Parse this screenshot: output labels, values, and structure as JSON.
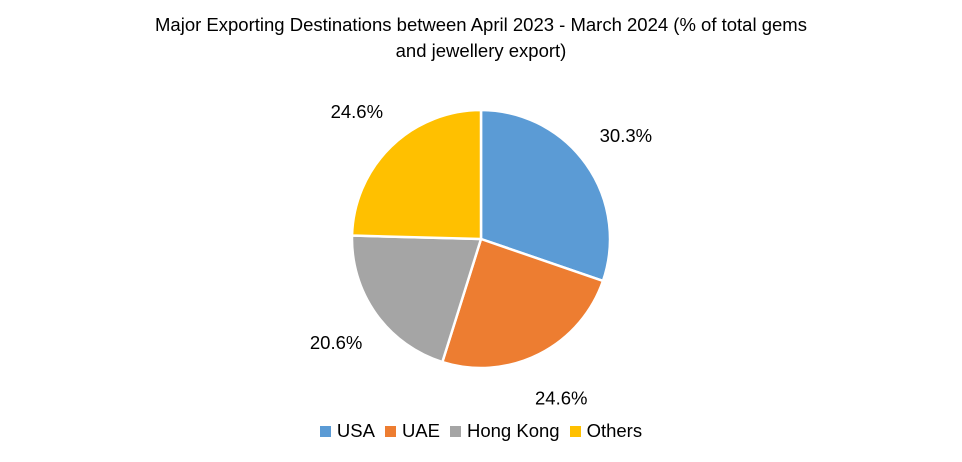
{
  "chart_data": {
    "type": "pie",
    "title": "Major Exporting Destinations between April 2023 - March 2024 (% of total gems and jewellery export)",
    "title_lines": [
      "Major Exporting Destinations between April 2023 - March 2024 (% of total gems",
      "and jewellery export)"
    ],
    "categories": [
      "USA",
      "UAE",
      "Hong Kong",
      "Others"
    ],
    "values": [
      30.3,
      24.6,
      20.6,
      24.6
    ],
    "data_labels": [
      "30.3%",
      "24.6%",
      "20.6%",
      "24.6%"
    ],
    "colors": [
      "#5B9BD5",
      "#ED7D31",
      "#A5A5A5",
      "#FFC000"
    ],
    "legend_position": "bottom",
    "start_angle_degrees": 0,
    "direction": "clockwise"
  }
}
